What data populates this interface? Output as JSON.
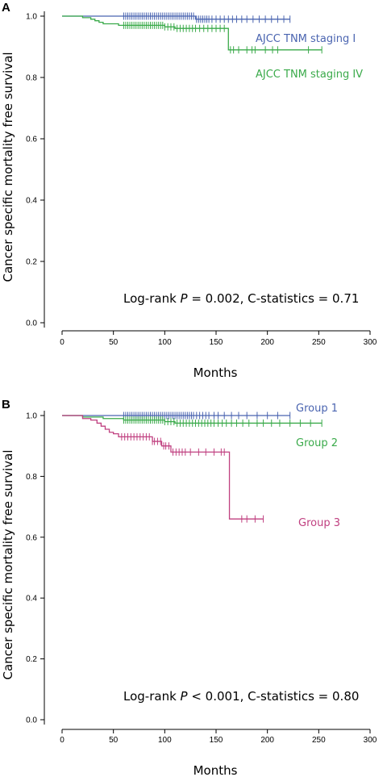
{
  "chart_data": [
    {
      "panel": "A",
      "type": "line",
      "xlabel": "Months",
      "ylabel": "Cancer specific mortality free survival",
      "xlim": [
        0,
        300
      ],
      "ylim": [
        0,
        1
      ],
      "xticks": [
        "0",
        "50",
        "100",
        "150",
        "200",
        "250",
        "300"
      ],
      "yticks": [
        "0.0",
        "0.2",
        "0.4",
        "0.6",
        "0.8",
        "1.0"
      ],
      "annotation": {
        "prefix": "Log-rank ",
        "p": "P",
        "rest": " = 0.002, C-statistics = 0.71"
      },
      "series": [
        {
          "name": "AJCC TNM staging I",
          "color": "#4a64b0",
          "steps": [
            [
              0,
              1.0
            ],
            [
              130,
              0.99
            ],
            [
              222,
              0.99
            ]
          ],
          "censors": [
            60,
            62,
            64,
            66,
            68,
            70,
            72,
            74,
            76,
            78,
            80,
            82,
            84,
            86,
            88,
            90,
            92,
            94,
            96,
            98,
            100,
            102,
            104,
            106,
            108,
            110,
            112,
            114,
            116,
            118,
            120,
            122,
            124,
            126,
            128,
            131,
            133,
            135,
            137,
            139,
            141,
            143,
            146,
            150,
            154,
            158,
            162,
            166,
            170,
            175,
            180,
            186,
            192,
            198,
            204,
            210,
            216,
            222
          ]
        },
        {
          "name": "AJCC TNM staging IV",
          "color": "#3aaa4a",
          "steps": [
            [
              0,
              1.0
            ],
            [
              20,
              0.995
            ],
            [
              28,
              0.99
            ],
            [
              32,
              0.985
            ],
            [
              36,
              0.98
            ],
            [
              40,
              0.975
            ],
            [
              55,
              0.97
            ],
            [
              100,
              0.965
            ],
            [
              110,
              0.96
            ],
            [
              162,
              0.89
            ],
            [
              253,
              0.89
            ]
          ],
          "censors": [
            60,
            62,
            64,
            66,
            68,
            70,
            72,
            74,
            76,
            78,
            80,
            82,
            84,
            86,
            88,
            90,
            92,
            94,
            96,
            98,
            100,
            103,
            106,
            109,
            112,
            115,
            118,
            121,
            124,
            127,
            130,
            134,
            138,
            142,
            146,
            150,
            154,
            158,
            164,
            167,
            172,
            180,
            185,
            188,
            198,
            205,
            210,
            240,
            253
          ]
        }
      ]
    },
    {
      "panel": "B",
      "type": "line",
      "xlabel": "Months",
      "ylabel": "Cancer specific mortality free survival",
      "xlim": [
        0,
        300
      ],
      "ylim": [
        0,
        1
      ],
      "xticks": [
        "0",
        "50",
        "100",
        "150",
        "200",
        "250",
        "300"
      ],
      "yticks": [
        "0.0",
        "0.2",
        "0.4",
        "0.6",
        "0.8",
        "1.0"
      ],
      "annotation": {
        "prefix": "Log-rank ",
        "p": "P",
        "rest": " < 0.001, C-statistics = 0.80"
      },
      "series": [
        {
          "name": "Group 1",
          "color": "#4a64b0",
          "steps": [
            [
              0,
              1.0
            ],
            [
              222,
              1.0
            ]
          ],
          "censors": [
            60,
            62,
            64,
            66,
            68,
            70,
            72,
            74,
            76,
            78,
            80,
            82,
            84,
            86,
            88,
            90,
            92,
            94,
            96,
            98,
            100,
            102,
            104,
            106,
            108,
            110,
            112,
            114,
            116,
            118,
            120,
            122,
            124,
            126,
            128,
            131,
            134,
            137,
            140,
            143,
            148,
            152,
            158,
            165,
            172,
            180,
            190,
            200,
            210,
            222
          ]
        },
        {
          "name": "Group 2",
          "color": "#3aaa4a",
          "steps": [
            [
              0,
              1.0
            ],
            [
              20,
              0.995
            ],
            [
              40,
              0.99
            ],
            [
              60,
              0.985
            ],
            [
              100,
              0.98
            ],
            [
              110,
              0.975
            ],
            [
              253,
              0.975
            ]
          ],
          "censors": [
            60,
            62,
            64,
            66,
            68,
            70,
            72,
            74,
            76,
            78,
            80,
            82,
            84,
            86,
            88,
            90,
            92,
            94,
            96,
            98,
            100,
            103,
            106,
            109,
            112,
            115,
            118,
            121,
            124,
            127,
            130,
            133,
            136,
            139,
            142,
            145,
            148,
            152,
            156,
            160,
            165,
            170,
            176,
            182,
            190,
            196,
            204,
            212,
            222,
            232,
            242,
            253
          ]
        },
        {
          "name": "Group 3",
          "color": "#c04080",
          "steps": [
            [
              0,
              1.0
            ],
            [
              20,
              0.99
            ],
            [
              28,
              0.985
            ],
            [
              34,
              0.975
            ],
            [
              38,
              0.965
            ],
            [
              42,
              0.955
            ],
            [
              46,
              0.945
            ],
            [
              50,
              0.94
            ],
            [
              55,
              0.93
            ],
            [
              88,
              0.915
            ],
            [
              97,
              0.9
            ],
            [
              106,
              0.88
            ],
            [
              163,
              0.66
            ],
            [
              196,
              0.66
            ]
          ],
          "censors": [
            58,
            61,
            64,
            67,
            70,
            73,
            76,
            79,
            82,
            85,
            88,
            90,
            93,
            96,
            99,
            101,
            104,
            108,
            111,
            114,
            117,
            120,
            125,
            133,
            140,
            148,
            155,
            158,
            175,
            180,
            188,
            196
          ]
        }
      ]
    }
  ]
}
